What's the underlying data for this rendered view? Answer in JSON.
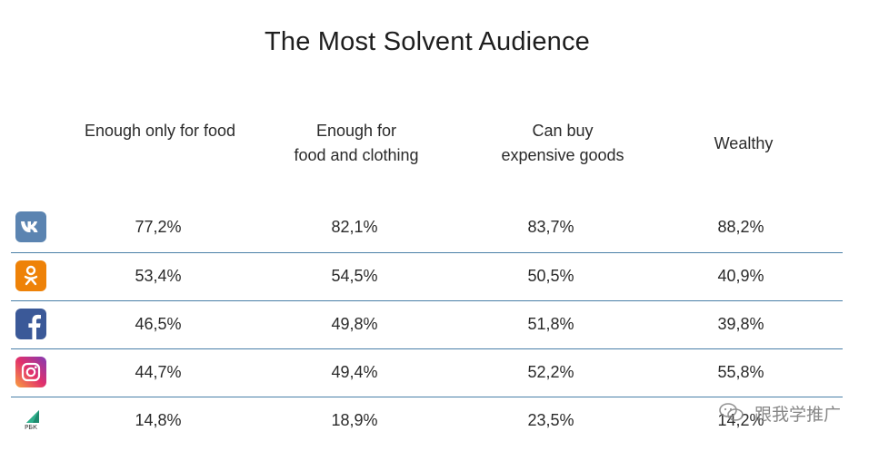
{
  "chart_data": {
    "type": "table",
    "title": "The Most Solvent Audience",
    "columns": [
      [
        "Enough only for food"
      ],
      [
        "Enough for",
        "food and clothing"
      ],
      [
        "Can buy",
        "expensive goods"
      ],
      [
        "Wealthy"
      ]
    ],
    "rows": [
      {
        "icon": "vk-icon",
        "name": "VK",
        "values": [
          "77,2%",
          "82,1%",
          "83,7%",
          "88,2%"
        ]
      },
      {
        "icon": "odnoklassniki-icon",
        "name": "Odnoklassniki",
        "values": [
          "53,4%",
          "54,5%",
          "50,5%",
          "40,9%"
        ]
      },
      {
        "icon": "facebook-icon",
        "name": "Facebook",
        "values": [
          "46,5%",
          "49,8%",
          "51,8%",
          "39,8%"
        ]
      },
      {
        "icon": "instagram-icon",
        "name": "Instagram",
        "values": [
          "44,7%",
          "49,4%",
          "52,2%",
          "55,8%"
        ]
      },
      {
        "icon": "rbk-icon",
        "name": "РБК",
        "values": [
          "14,8%",
          "18,9%",
          "23,5%",
          "14,2%"
        ]
      }
    ]
  },
  "watermark": {
    "icon": "wechat-icon",
    "text": "跟我学推广"
  },
  "colors": {
    "vk": "#5b84b1",
    "ok": "#ee8208",
    "facebook": "#3b5998",
    "instagram": "#c13584",
    "rbk": "#1f8a6e",
    "divider": "#4a7fa8"
  }
}
